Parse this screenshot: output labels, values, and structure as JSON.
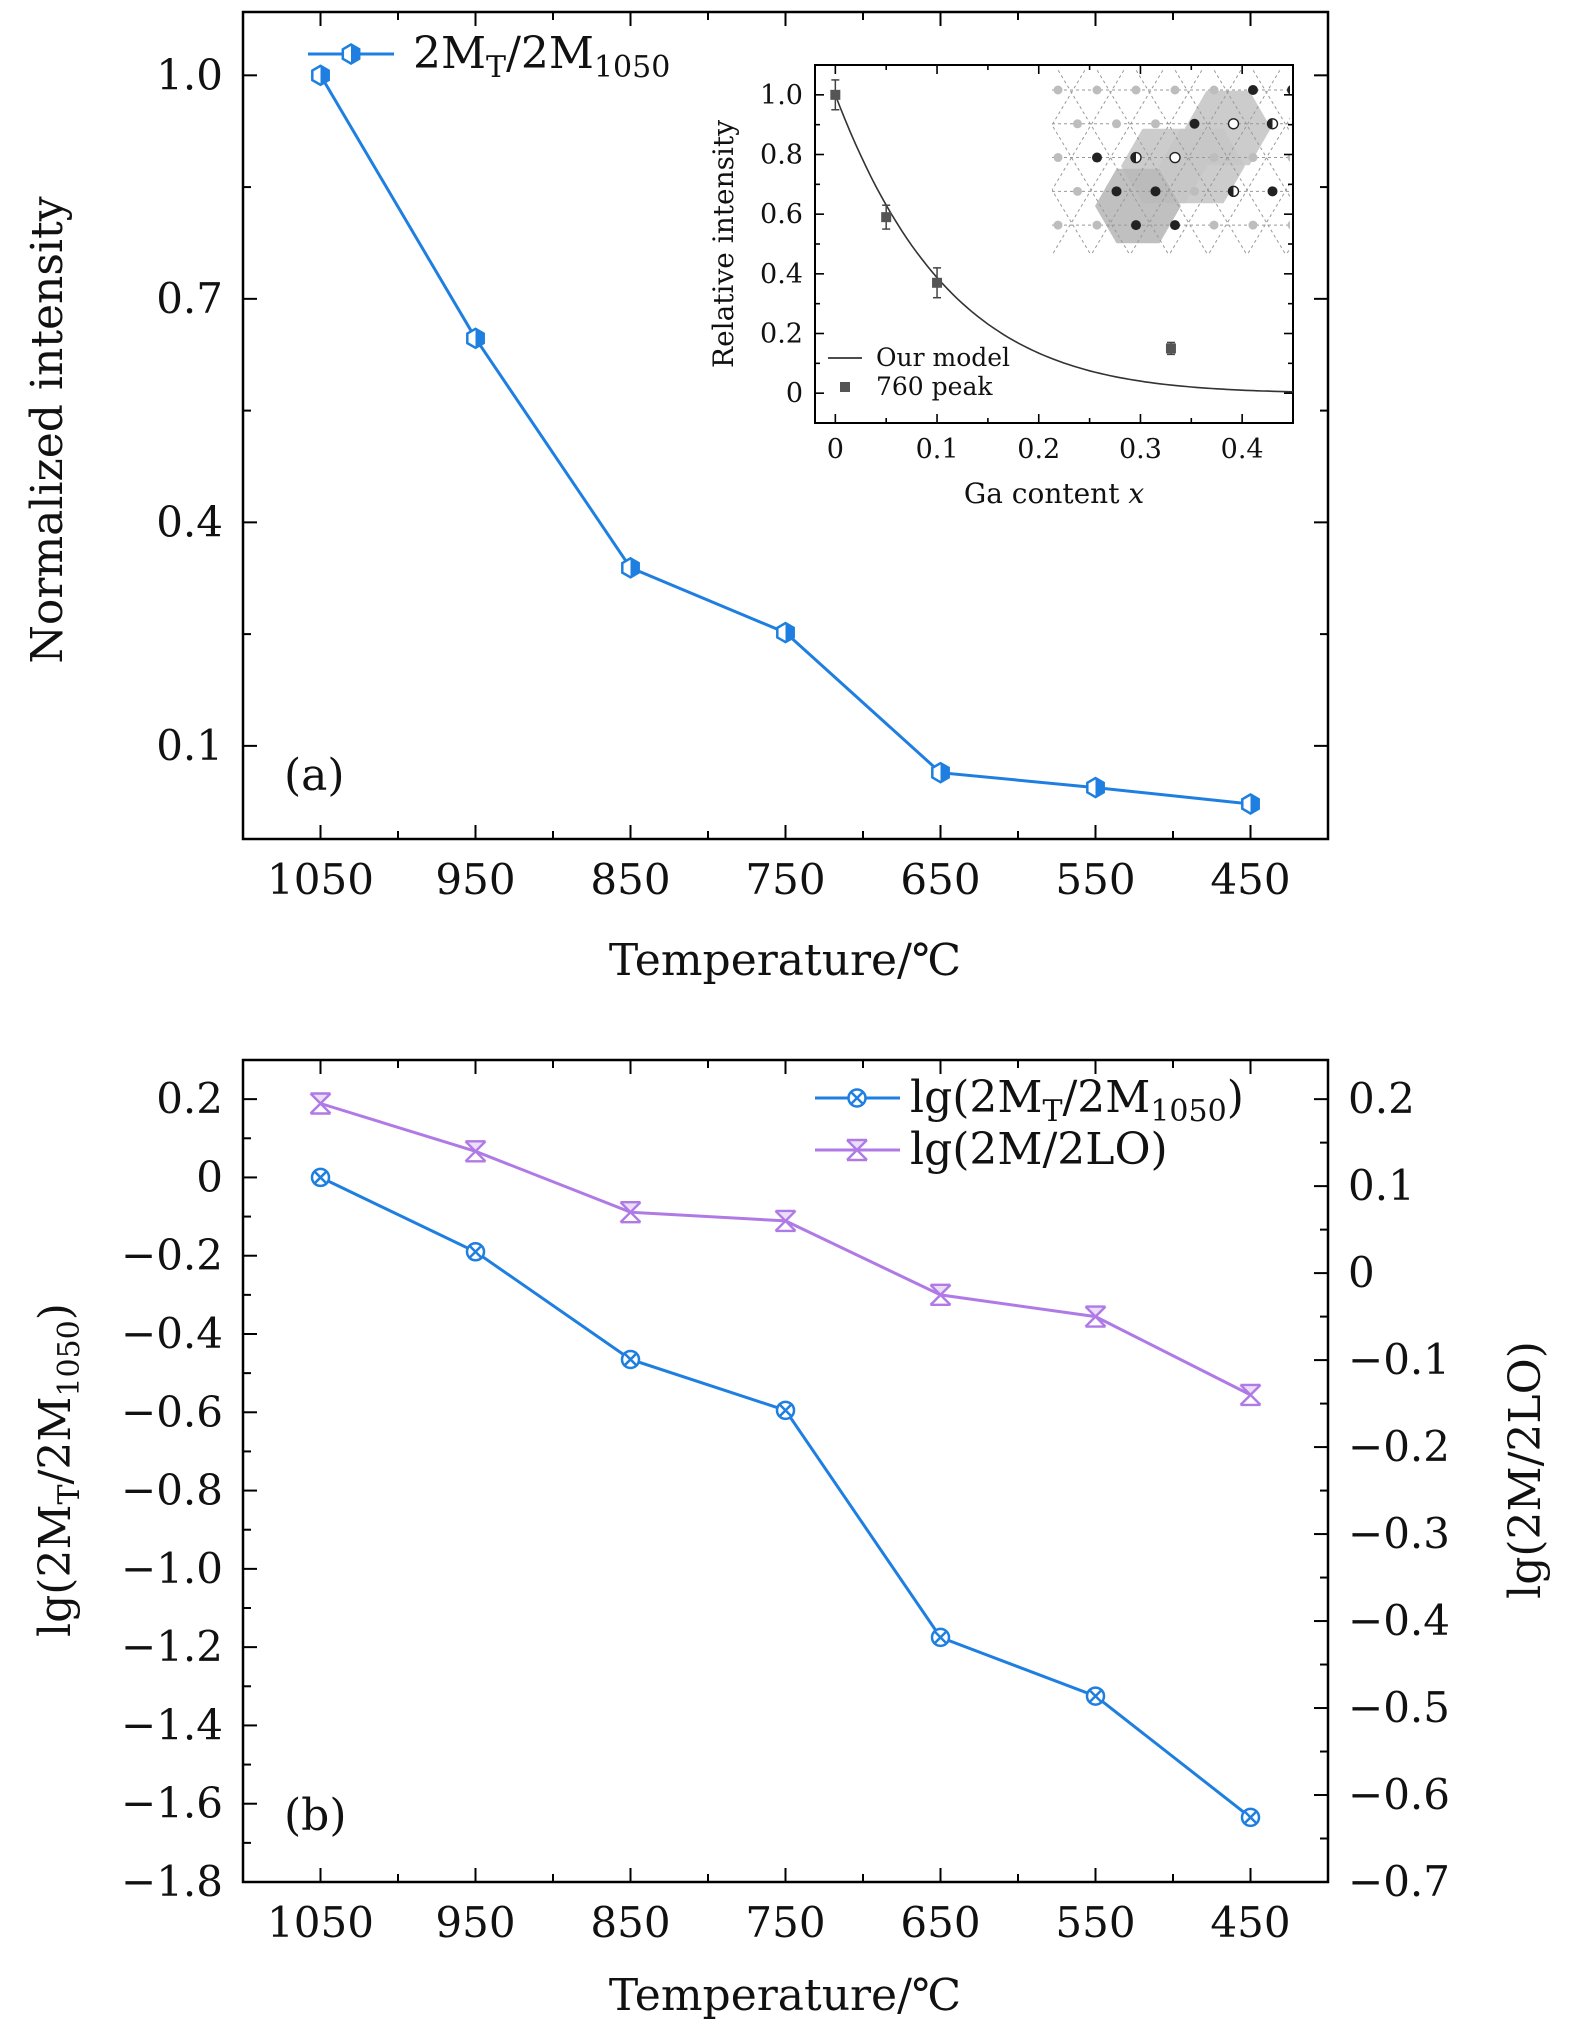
{
  "chart_data": [
    {
      "panel": "(a)",
      "type": "line",
      "x": [
        1050,
        950,
        850,
        750,
        650,
        550,
        450
      ],
      "xlabel": "Temperature/℃",
      "ylabel": "Normalized intensity",
      "xlim": [
        1100,
        400
      ],
      "ylim": [
        -0.025,
        1.085
      ],
      "xticks": [
        "1050",
        "950",
        "850",
        "750",
        "650",
        "550",
        "450"
      ],
      "yticks": [
        "1.0",
        "0.7",
        "0.4",
        "0.1"
      ],
      "yticks_values": [
        1.0,
        0.7,
        0.4,
        0.1
      ],
      "legend_position": "top-left",
      "color": "#1e7fe0",
      "series": [
        {
          "name_main": "2M",
          "name_sub": "T",
          "name_mid": "/2M",
          "name_sub2": "1050",
          "values": [
            1.0,
            0.647,
            0.339,
            0.252,
            0.064,
            0.044,
            0.022
          ]
        }
      ],
      "inset": {
        "type": "scatter",
        "xlabel_main": "Ga content ",
        "xlabel_var": "x",
        "ylabel": "Relative intensity",
        "xlim": [
          -0.02,
          0.45
        ],
        "ylim": [
          -0.1,
          1.1
        ],
        "xticks": [
          "0",
          "0.1",
          "0.2",
          "0.3",
          "0.4"
        ],
        "xticks_values": [
          0,
          0.1,
          0.2,
          0.3,
          0.4
        ],
        "yticks": [
          "1.0",
          "0.8",
          "0.6",
          "0.4",
          "0.2",
          "0"
        ],
        "yticks_values": [
          1.0,
          0.8,
          0.6,
          0.4,
          0.2,
          0
        ],
        "legend": [
          "Our model",
          "760 peak"
        ],
        "points": [
          {
            "x": 0,
            "y": 1.0,
            "err": 0.05
          },
          {
            "x": 0.05,
            "y": 0.59,
            "err": 0.04
          },
          {
            "x": 0.1,
            "y": 0.37,
            "err": 0.05
          },
          {
            "x": 0.33,
            "y": 0.15,
            "err": 0.02
          }
        ],
        "model_curve": {
          "form": "(1-x)^9",
          "x_range": [
            0,
            0.45
          ]
        },
        "lattice_image": true
      }
    },
    {
      "panel": "(b)",
      "type": "line",
      "x": [
        1050,
        950,
        850,
        750,
        650,
        550,
        450
      ],
      "xlabel": "Temperature/℃",
      "ylabel_left": {
        "pre": "lg(2M",
        "sub": "T",
        "mid": "/2M",
        "sub2": "1050",
        "post": ")"
      },
      "ylabel_right": "lg(2M/2LO)",
      "xlim": [
        1100,
        400
      ],
      "ylim_left": [
        -1.8,
        0.3
      ],
      "ylim_right": [
        -0.7,
        0.245
      ],
      "xticks": [
        "1050",
        "950",
        "850",
        "750",
        "650",
        "550",
        "450"
      ],
      "yticks_left": [
        "0.2",
        "0",
        "−0.2",
        "−0.4",
        "−0.6",
        "−0.8",
        "−1.0",
        "−1.2",
        "−1.4",
        "−1.6",
        "−1.8"
      ],
      "yticks_left_values": [
        0.2,
        0,
        -0.2,
        -0.4,
        -0.6,
        -0.8,
        -1.0,
        -1.2,
        -1.4,
        -1.6,
        -1.8
      ],
      "yticks_right": [
        "0.2",
        "0.1",
        "0",
        "−0.1",
        "−0.2",
        "−0.3",
        "−0.4",
        "−0.5",
        "−0.6",
        "−0.7"
      ],
      "yticks_right_values": [
        0.2,
        0.1,
        0,
        -0.1,
        -0.2,
        -0.3,
        -0.4,
        -0.5,
        -0.6,
        -0.7
      ],
      "legend_position": "top-right",
      "series": [
        {
          "name_pre": "lg(2M",
          "name_sub": "T",
          "name_mid": "/2M",
          "name_sub2": "1050",
          "name_post": ")",
          "axis": "left",
          "color": "#1e7fe0",
          "values": [
            0.0,
            -0.19,
            -0.465,
            -0.595,
            -1.175,
            -1.325,
            -1.635
          ]
        },
        {
          "name": "lg(2M/2LO)",
          "axis": "right",
          "color": "#b07ae6",
          "values": [
            0.195,
            0.14,
            0.07,
            0.06,
            -0.025,
            -0.05,
            -0.14
          ]
        }
      ]
    }
  ]
}
